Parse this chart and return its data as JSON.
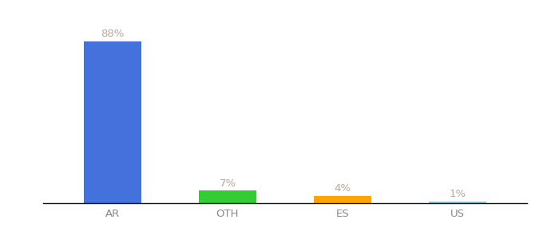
{
  "categories": [
    "AR",
    "OTH",
    "ES",
    "US"
  ],
  "values": [
    88,
    7,
    4,
    1
  ],
  "bar_colors": [
    "#4472DD",
    "#33CC33",
    "#FFA500",
    "#87CEEB"
  ],
  "label_color": "#B8A898",
  "background_color": "#ffffff",
  "ylim": [
    0,
    100
  ],
  "label_fontsize": 9.5,
  "tick_fontsize": 9.5,
  "tick_color": "#888888",
  "bar_width": 0.5,
  "figsize": [
    6.8,
    3.0
  ],
  "dpi": 100
}
